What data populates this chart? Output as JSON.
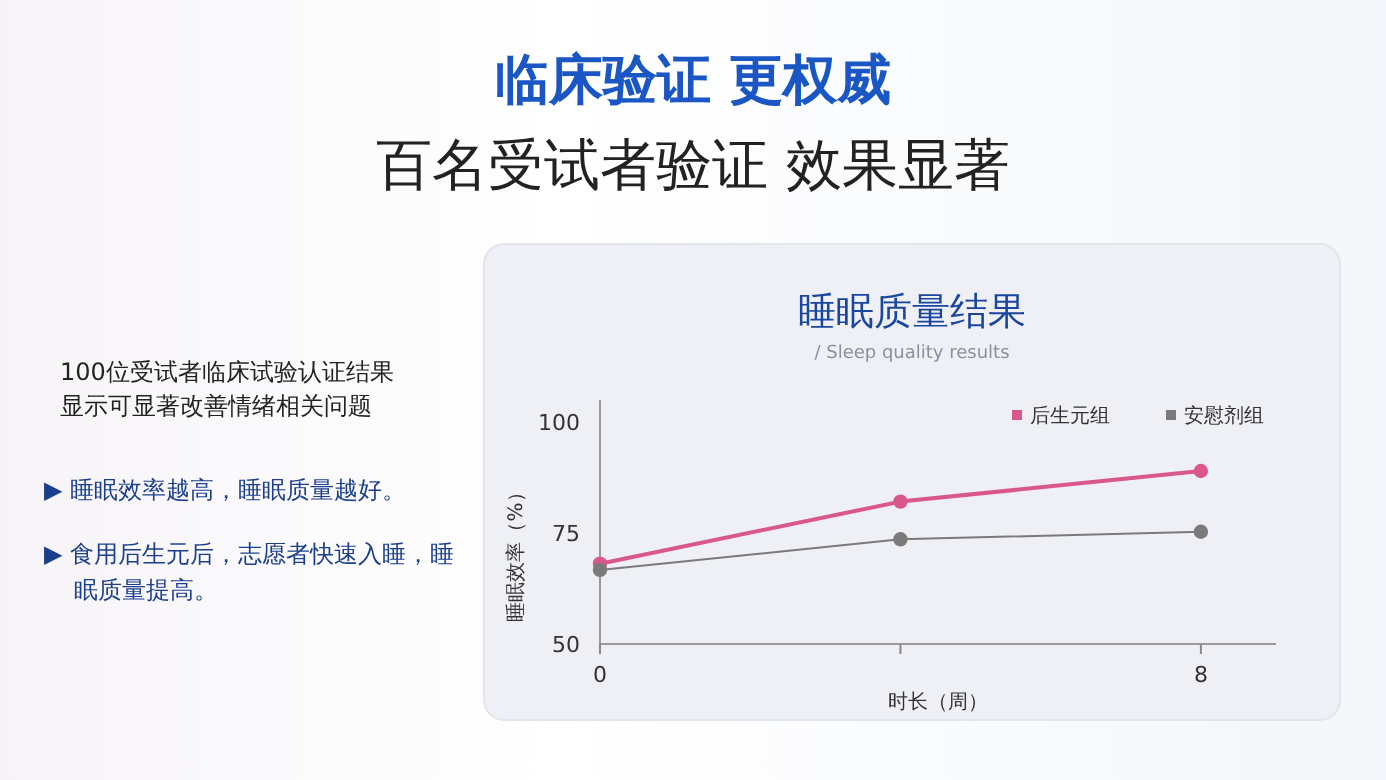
{
  "chart_data": {
    "type": "line",
    "title": "睡眠质量结果",
    "subtitle": "/ Sleep quality results",
    "xlabel": "时长（周）",
    "ylabel": "睡眠效率（%）",
    "x": [
      0,
      4,
      8
    ],
    "series": [
      {
        "name": "后生元组",
        "color": "#d9578a",
        "values": [
          68.1,
          82.1,
          89
        ]
      },
      {
        "name": "安慰剂组",
        "color": "#7a7a7a",
        "values": [
          66.7,
          73.6,
          75.3
        ]
      }
    ],
    "xlim": [
      0,
      9
    ],
    "xticks": [
      0,
      {
        "value": 4,
        "label": null
      },
      8
    ],
    "ylim": [
      50,
      105
    ],
    "yticks": [
      50,
      75,
      100
    ],
    "legend": "top right",
    "marker": "circle",
    "line_style": "solid",
    "grid": false,
    "annotations": [
      "临床验证 更权威",
      "百名受试者验证  效果显著",
      "100位受试者临床试验认证结果显示可显著改善情绪相关问题",
      "▶ 睡眠效率越高，睡眠质量越好。",
      "▶ 食用后生元后，志愿者快速入睡，睡眠质量提高。"
    ]
  }
}
